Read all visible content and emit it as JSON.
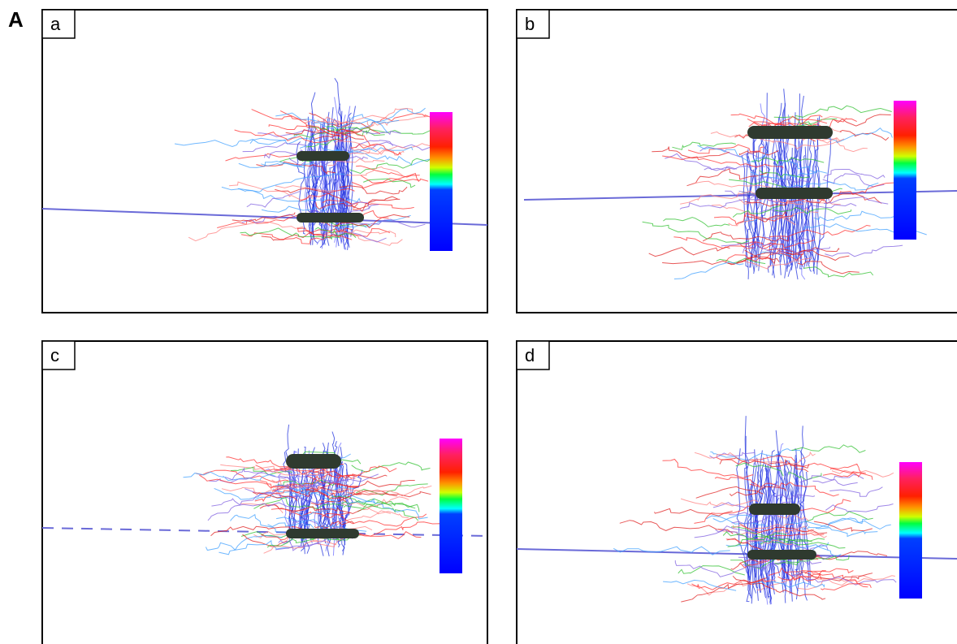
{
  "figure": {
    "label": "A",
    "panels": [
      {
        "label": "a"
      },
      {
        "label": "b"
      },
      {
        "label": "c"
      },
      {
        "label": "d"
      }
    ]
  }
}
